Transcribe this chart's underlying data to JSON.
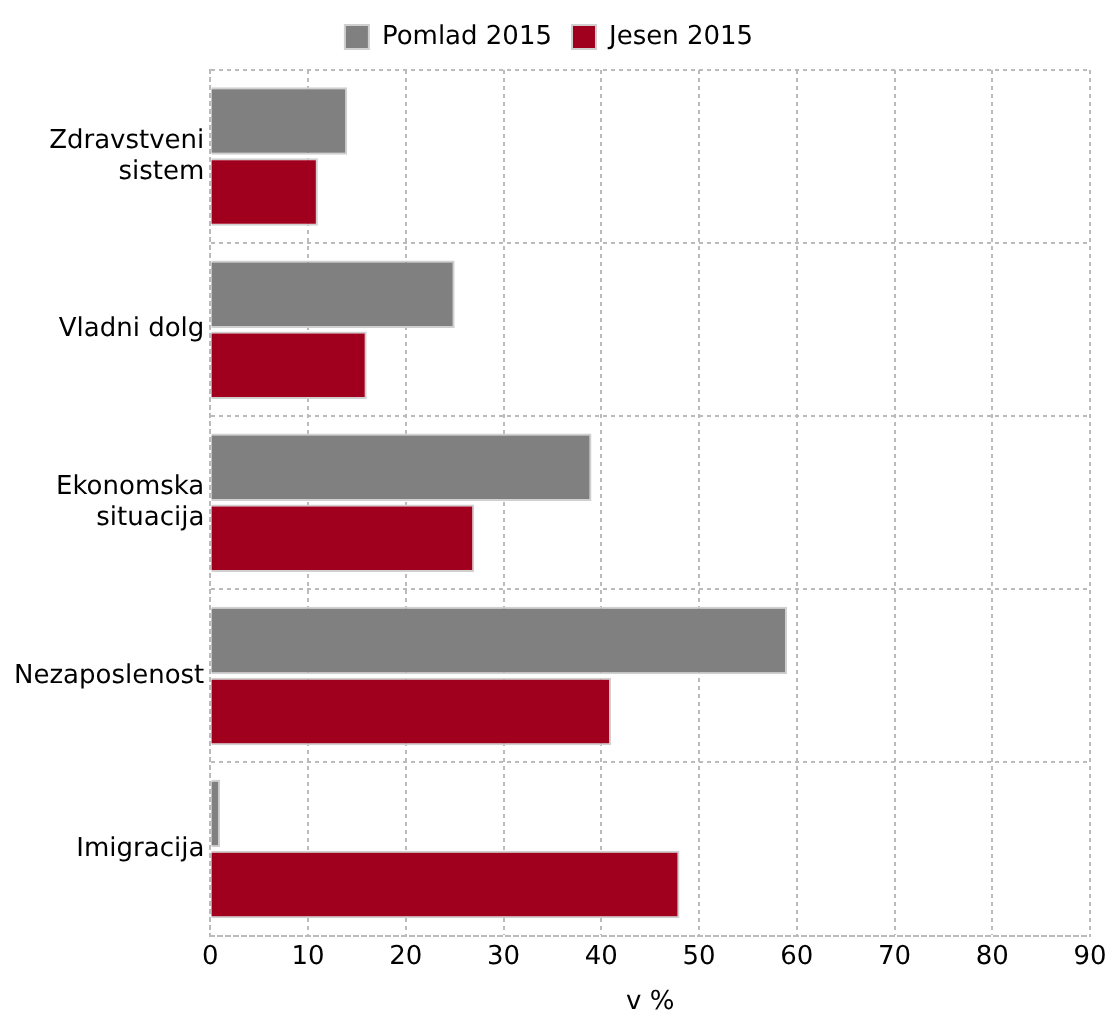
{
  "chart_data": {
    "type": "bar",
    "orientation": "horizontal",
    "xlabel": "v %",
    "categories": [
      "Zdravstveni sistem",
      "Vladni dolg",
      "Ekonomska situacija",
      "Nezaposlenost",
      "Imigracija"
    ],
    "series": [
      {
        "name": "Pomlad 2015",
        "color": "#808080",
        "values": [
          14,
          25,
          39,
          59,
          1
        ]
      },
      {
        "name": "Jesen 2015",
        "color": "#a0001e",
        "values": [
          11,
          16,
          27,
          41,
          48
        ]
      }
    ],
    "xlim": [
      0,
      90
    ],
    "xticks": [
      0,
      10,
      20,
      30,
      40,
      50,
      60,
      70,
      80,
      90
    ],
    "grid": true,
    "legend": "top"
  }
}
